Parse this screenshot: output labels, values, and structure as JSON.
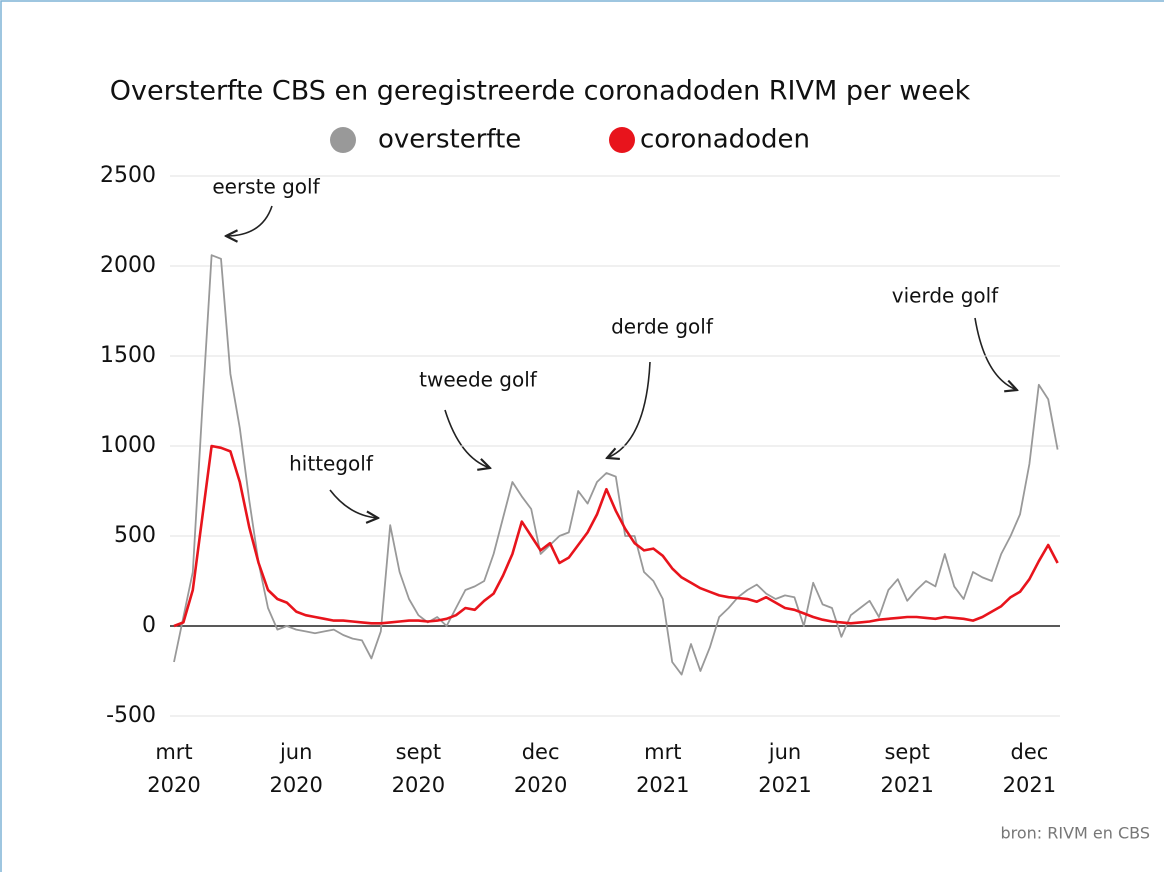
{
  "chart_data": {
    "type": "line",
    "title": "Oversterfte CBS en geregistreerde coronadoden RIVM per week",
    "categories": [
      "mrt 2020",
      null,
      null,
      null,
      null,
      null,
      null,
      null,
      null,
      null,
      null,
      null,
      null,
      "jun 2020",
      null,
      null,
      null,
      null,
      null,
      null,
      null,
      null,
      null,
      null,
      null,
      null,
      "sept 2020",
      null,
      null,
      null,
      null,
      null,
      null,
      null,
      null,
      null,
      null,
      null,
      null,
      "dec 2020",
      null,
      null,
      null,
      null,
      null,
      null,
      null,
      null,
      null,
      null,
      null,
      null,
      "mrt 2021",
      null,
      null,
      null,
      null,
      null,
      null,
      null,
      null,
      null,
      null,
      null,
      null,
      "jun 2021",
      null,
      null,
      null,
      null,
      null,
      null,
      null,
      null,
      null,
      null,
      null,
      null,
      "sept 2021",
      null,
      null,
      null,
      null,
      null,
      null,
      null,
      null,
      null,
      null,
      null,
      null,
      "dec 2021",
      null,
      null,
      null
    ],
    "series": [
      {
        "name": "oversterfte",
        "color": "#999999",
        "values": [
          -200,
          50,
          300,
          1200,
          2060,
          2040,
          1400,
          1100,
          700,
          350,
          100,
          -20,
          0,
          -20,
          -30,
          -40,
          -30,
          -20,
          -50,
          -70,
          -80,
          -180,
          -30,
          560,
          300,
          150,
          60,
          20,
          50,
          0,
          100,
          200,
          220,
          250,
          400,
          600,
          800,
          720,
          650,
          400,
          450,
          500,
          520,
          750,
          680,
          800,
          850,
          830,
          500,
          500,
          300,
          250,
          150,
          -200,
          -270,
          -100,
          -250,
          -120,
          50,
          100,
          160,
          200,
          230,
          180,
          150,
          170,
          160,
          0,
          240,
          120,
          100,
          -60,
          60,
          100,
          140,
          50,
          200,
          260,
          140,
          200,
          250,
          220,
          400,
          220,
          150,
          300,
          270,
          250,
          400,
          500,
          620,
          900,
          1340,
          1260,
          980
        ]
      },
      {
        "name": "coronadoden",
        "color": "#e8141c",
        "values": [
          0,
          20,
          200,
          600,
          1000,
          990,
          970,
          800,
          550,
          350,
          200,
          150,
          130,
          80,
          60,
          50,
          40,
          30,
          30,
          25,
          20,
          15,
          15,
          20,
          25,
          30,
          30,
          25,
          30,
          40,
          60,
          100,
          90,
          140,
          180,
          280,
          400,
          580,
          500,
          420,
          460,
          350,
          380,
          450,
          520,
          620,
          760,
          640,
          540,
          460,
          420,
          430,
          390,
          320,
          270,
          240,
          210,
          190,
          170,
          160,
          155,
          150,
          135,
          160,
          130,
          100,
          90,
          70,
          50,
          35,
          25,
          20,
          15,
          20,
          25,
          35,
          40,
          45,
          50,
          50,
          45,
          40,
          50,
          45,
          40,
          30,
          50,
          80,
          110,
          160,
          190,
          260,
          360,
          450,
          350
        ]
      }
    ],
    "ylim": [
      -500,
      2500
    ],
    "yticks": [
      -500,
      0,
      500,
      1000,
      1500,
      2000,
      2500
    ],
    "grid": true,
    "annotations": [
      "eerste golf",
      "hittegolf",
      "tweede golf",
      "derde golf",
      "vierde golf"
    ],
    "source": "bron: RIVM en CBS"
  }
}
